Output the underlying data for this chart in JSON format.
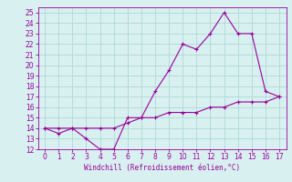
{
  "xlabel": "Windchill (Refroidissement éolien,°C)",
  "line1_x": [
    0,
    1,
    2,
    3,
    4,
    5,
    6,
    7,
    8,
    9,
    10,
    11,
    12,
    13,
    14,
    15,
    16,
    17
  ],
  "line1_y": [
    14,
    13.5,
    14,
    13,
    12,
    12,
    15,
    15,
    17.5,
    19.5,
    22,
    21.5,
    23,
    25,
    23,
    23,
    17.5,
    17
  ],
  "line2_x": [
    0,
    1,
    2,
    3,
    4,
    5,
    6,
    7,
    8,
    9,
    10,
    11,
    12,
    13,
    14,
    15,
    16,
    17
  ],
  "line2_y": [
    14,
    14,
    14,
    14,
    14,
    14,
    14.5,
    15,
    15,
    15.5,
    15.5,
    15.5,
    16,
    16,
    16.5,
    16.5,
    16.5,
    17
  ],
  "line_color": "#990099",
  "bg_color": "#d8f0f0",
  "grid_color": "#b0d8d8",
  "ylim": [
    12,
    25.5
  ],
  "xlim": [
    -0.5,
    17.5
  ],
  "yticks": [
    12,
    13,
    14,
    15,
    16,
    17,
    18,
    19,
    20,
    21,
    22,
    23,
    24,
    25
  ],
  "xticks": [
    0,
    1,
    2,
    3,
    4,
    5,
    6,
    7,
    8,
    9,
    10,
    11,
    12,
    13,
    14,
    15,
    16,
    17
  ]
}
